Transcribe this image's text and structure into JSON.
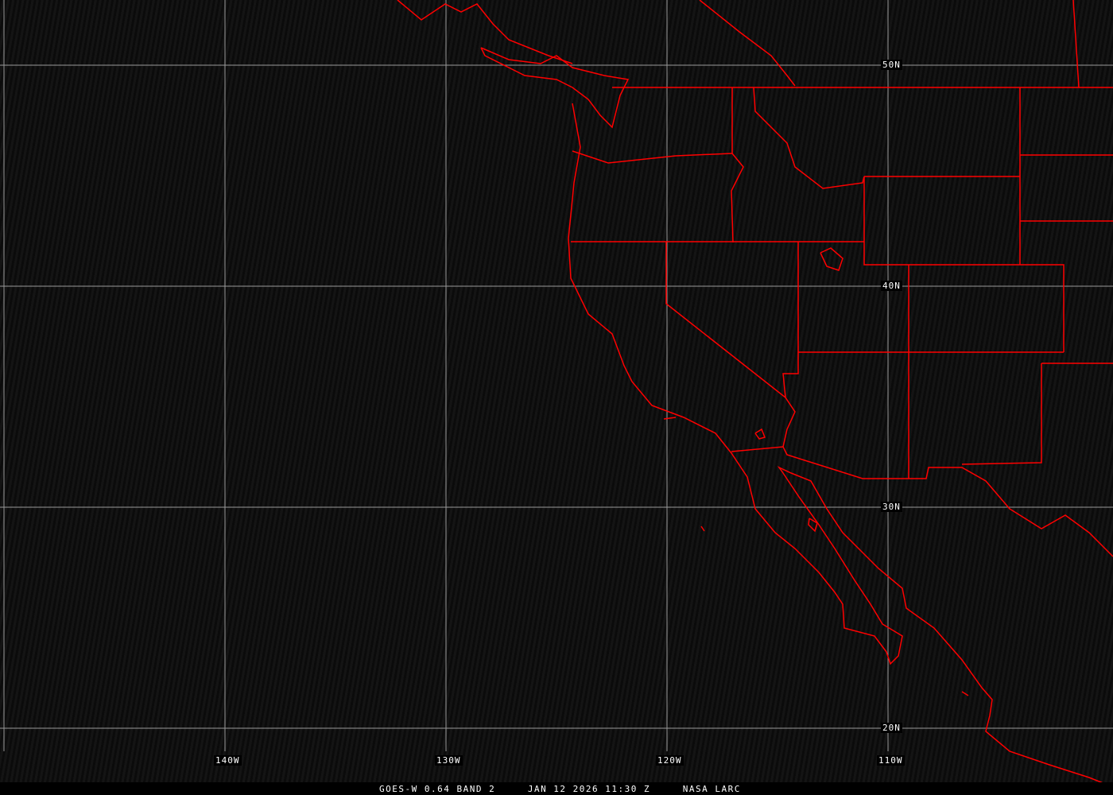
{
  "map": {
    "caption": "GOES-W 0.64 BAND 2     JAN 12 2026 11:30 Z     NASA LARC",
    "lat_labels": [
      "50N",
      "40N",
      "30N",
      "20N"
    ],
    "lon_labels": [
      "140W",
      "130W",
      "120W",
      "110W"
    ],
    "boundary_color": "#ff0000",
    "grid_color": "#9a9a9a"
  }
}
